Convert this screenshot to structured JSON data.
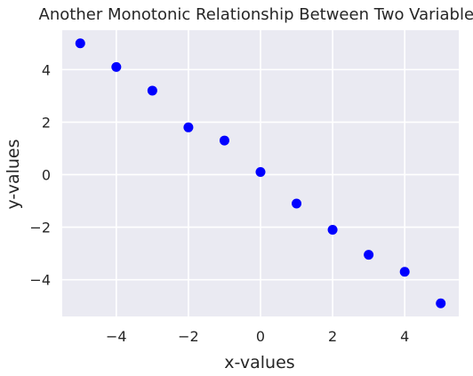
{
  "chart_data": {
    "type": "scatter",
    "title": "Another Monotonic Relationship Between Two Variables",
    "xlabel": "x-values",
    "ylabel": "y-values",
    "x": [
      -5,
      -4,
      -3,
      -2,
      -1,
      0,
      1,
      2,
      3,
      4,
      5
    ],
    "y": [
      5.0,
      4.1,
      3.2,
      1.8,
      1.3,
      0.1,
      -1.1,
      -2.1,
      -3.05,
      -3.7,
      -4.9
    ],
    "xlim": [
      -5.5,
      5.5
    ],
    "ylim": [
      -5.4,
      5.5
    ],
    "x_ticks": [
      -4,
      -2,
      0,
      2,
      4
    ],
    "x_tick_labels": [
      "−4",
      "−2",
      "0",
      "2",
      "4"
    ],
    "y_ticks": [
      -4,
      -2,
      0,
      2,
      4
    ],
    "y_tick_labels": [
      "−4",
      "−2",
      "0",
      "2",
      "4"
    ],
    "grid": true,
    "legend": false,
    "colors": {
      "marker": "#0000ff",
      "plot_background": "#eaeaf2",
      "grid": "#ffffff",
      "text": "#262626"
    }
  }
}
